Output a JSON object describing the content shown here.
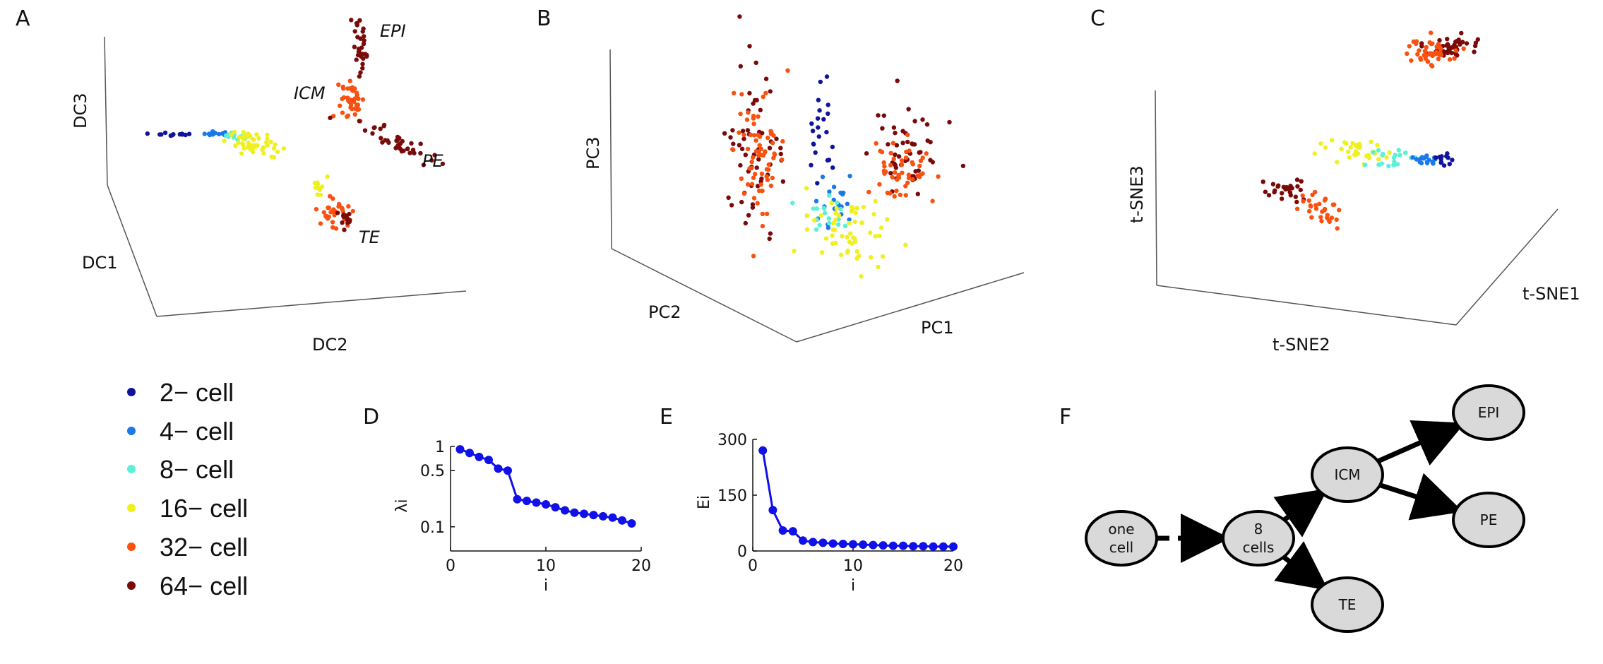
{
  "panels": {
    "A": {
      "label": "A",
      "axes": {
        "x": "DC1",
        "y": "DC2",
        "z": "DC3"
      },
      "annotations": {
        "epi": "EPI",
        "icm": "ICM",
        "pe": "PE",
        "te": "TE"
      }
    },
    "B": {
      "label": "B",
      "axes": {
        "x": "PC2",
        "y": "PC1",
        "z": "PC3"
      }
    },
    "C": {
      "label": "C",
      "axes": {
        "x": "t-SNE2",
        "y": "t-SNE1",
        "z": "t-SNE3"
      }
    },
    "D": {
      "label": "D"
    },
    "E": {
      "label": "E"
    },
    "F": {
      "label": "F"
    }
  },
  "legend": {
    "items": [
      {
        "label": "2− cell",
        "color": "#10149a"
      },
      {
        "label": "4− cell",
        "color": "#1a78e8"
      },
      {
        "label": "8− cell",
        "color": "#5cf0d8"
      },
      {
        "label": "16− cell",
        "color": "#f0f020"
      },
      {
        "label": "32− cell",
        "color": "#fa5010"
      },
      {
        "label": "64− cell",
        "color": "#7a0a0a"
      }
    ]
  },
  "chart_data": [
    {
      "type": "scatter",
      "panel": "D",
      "xlabel": "i",
      "ylabel": "λi",
      "xlim": [
        0,
        20
      ],
      "ylim": [
        0.05,
        1
      ],
      "xticks": [
        "0",
        "10",
        "20"
      ],
      "yticks": [
        "1",
        "0.5",
        "0.1"
      ],
      "ytick_values": [
        1,
        0.5,
        0.1
      ],
      "line_color": "#1010e8",
      "x": [
        1,
        2,
        3,
        4,
        5,
        6,
        7,
        8,
        9,
        10,
        11,
        12,
        13,
        14,
        15,
        16,
        17,
        18,
        19
      ],
      "y": [
        0.92,
        0.83,
        0.74,
        0.68,
        0.53,
        0.5,
        0.22,
        0.21,
        0.2,
        0.19,
        0.175,
        0.16,
        0.15,
        0.145,
        0.14,
        0.135,
        0.13,
        0.12,
        0.11
      ]
    },
    {
      "type": "scatter",
      "panel": "E",
      "xlabel": "i",
      "ylabel": "Ei",
      "xlim": [
        0,
        20
      ],
      "ylim": [
        0,
        300
      ],
      "xticks": [
        "0",
        "10",
        "20"
      ],
      "yticks": [
        "300",
        "150",
        "0"
      ],
      "ytick_values": [
        300,
        150,
        0
      ],
      "line_color": "#1010e8",
      "x": [
        1,
        2,
        3,
        4,
        5,
        6,
        7,
        8,
        9,
        10,
        11,
        12,
        13,
        14,
        15,
        16,
        17,
        18,
        19,
        20
      ],
      "y": [
        270,
        110,
        55,
        53,
        28,
        24,
        22,
        20,
        19,
        18,
        17,
        16,
        15,
        14,
        14,
        13,
        13,
        12,
        12,
        12
      ]
    }
  ],
  "lineage": {
    "nodes": [
      {
        "id": "one",
        "lines": [
          "one",
          "cell"
        ]
      },
      {
        "id": "eight",
        "lines": [
          "8",
          "cells"
        ]
      },
      {
        "id": "icm",
        "lines": [
          "ICM"
        ]
      },
      {
        "id": "epi",
        "lines": [
          "EPI"
        ]
      },
      {
        "id": "pe",
        "lines": [
          "PE"
        ]
      },
      {
        "id": "te",
        "lines": [
          "TE"
        ]
      }
    ],
    "edges": [
      {
        "from": "one",
        "to": "eight",
        "style": "dashed"
      },
      {
        "from": "eight",
        "to": "icm",
        "style": "solid"
      },
      {
        "from": "eight",
        "to": "te",
        "style": "solid"
      },
      {
        "from": "icm",
        "to": "epi",
        "style": "solid"
      },
      {
        "from": "icm",
        "to": "pe",
        "style": "solid"
      }
    ],
    "node_fill": "#d9d9d9"
  }
}
